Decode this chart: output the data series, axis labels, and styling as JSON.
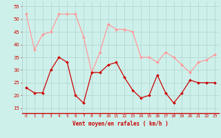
{
  "x": [
    0,
    1,
    2,
    3,
    4,
    5,
    6,
    7,
    8,
    9,
    10,
    11,
    12,
    13,
    14,
    15,
    16,
    17,
    18,
    19,
    20,
    21,
    22,
    23
  ],
  "wind_avg": [
    23,
    21,
    21,
    30,
    35,
    33,
    20,
    17,
    29,
    29,
    32,
    33,
    27,
    22,
    19,
    20,
    28,
    21,
    17,
    21,
    26,
    25,
    25,
    25
  ],
  "wind_gust": [
    52,
    38,
    44,
    45,
    52,
    52,
    52,
    43,
    29,
    37,
    48,
    46,
    46,
    45,
    35,
    35,
    33,
    37,
    35,
    32,
    29,
    33,
    34,
    36
  ],
  "avg_color": "#cc0000",
  "gust_color": "#ff9999",
  "bg_color": "#cef0ea",
  "grid_color": "#aacccc",
  "ylim": [
    13,
    57
  ],
  "yticks": [
    15,
    20,
    25,
    30,
    35,
    40,
    45,
    50,
    55
  ],
  "xlabel": "Vent moyen/en rafales ( km/h )",
  "xlabel_color": "#cc0000",
  "tick_color": "#cc0000",
  "bottom_line_color": "#cc0000"
}
